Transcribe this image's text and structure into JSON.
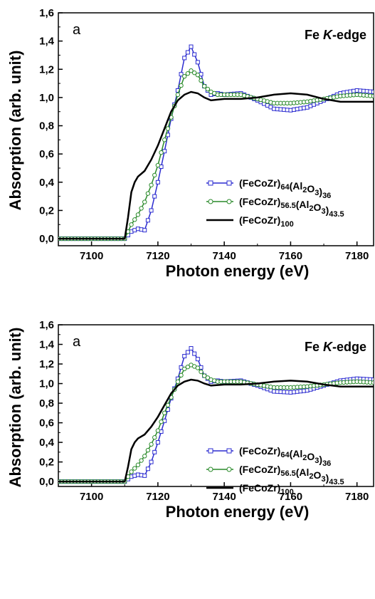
{
  "chart_data": [
    {
      "type": "line",
      "panel_label": "a",
      "annotation": "Fe K-edge",
      "annotation_parts": {
        "prefix": "Fe ",
        "italic": "K",
        "suffix": "-edge"
      },
      "xlabel": "Photon energy  (eV)",
      "ylabel": "Absorption  (arb. unit)",
      "xlim": [
        7090,
        7185
      ],
      "ylim": [
        -0.05,
        1.6
      ],
      "xticks": [
        7100,
        7120,
        7140,
        7160,
        7180
      ],
      "xtick_labels": [
        "7100",
        "7120",
        "7140",
        "7160",
        "7180"
      ],
      "yticks": [
        0.0,
        0.2,
        0.4,
        0.6,
        0.8,
        1.0,
        1.2,
        1.4,
        1.6
      ],
      "ytick_labels": [
        "0,0",
        "0,2",
        "0,4",
        "0,6",
        "0,8",
        "1,0",
        "1,2",
        "1,4",
        "1,6"
      ],
      "legend_position": "right",
      "series": [
        {
          "name": "(FeCoZr)64(Al2O3)36",
          "name_parts": [
            [
              "(FeCoZr)",
              ""
            ],
            [
              "64",
              "sub"
            ],
            [
              "(Al",
              ""
            ],
            [
              "2",
              "sub"
            ],
            [
              "O",
              ""
            ],
            [
              "3",
              "sub"
            ],
            [
              ")",
              ""
            ],
            [
              "36",
              "sub"
            ]
          ],
          "color": "#2b2bd0",
          "marker": "square",
          "x": [
            7090,
            7110,
            7112,
            7114,
            7116,
            7118,
            7120,
            7122,
            7124,
            7126,
            7128,
            7130,
            7132,
            7134,
            7136,
            7138,
            7140,
            7145,
            7150,
            7155,
            7160,
            7165,
            7170,
            7175,
            7180,
            7185
          ],
          "y": [
            0.0,
            0.0,
            0.05,
            0.07,
            0.06,
            0.2,
            0.4,
            0.62,
            0.85,
            1.05,
            1.28,
            1.36,
            1.25,
            1.08,
            1.02,
            1.03,
            1.02,
            1.03,
            0.98,
            0.92,
            0.91,
            0.93,
            0.98,
            1.03,
            1.05,
            1.04
          ]
        },
        {
          "name": "(FeCoZr)56.5(Al2O3)43.5",
          "name_parts": [
            [
              "(FeCoZr)",
              ""
            ],
            [
              "56.5",
              "sub"
            ],
            [
              "(Al",
              ""
            ],
            [
              "2",
              "sub"
            ],
            [
              "O",
              ""
            ],
            [
              "3",
              "sub"
            ],
            [
              ")",
              ""
            ],
            [
              "43.5",
              "sub"
            ]
          ],
          "color": "#2a8a2a",
          "marker": "circle",
          "x": [
            7090,
            7110,
            7112,
            7114,
            7116,
            7118,
            7120,
            7122,
            7124,
            7126,
            7128,
            7130,
            7132,
            7134,
            7136,
            7138,
            7140,
            7145,
            7150,
            7155,
            7160,
            7165,
            7170,
            7175,
            7180,
            7185
          ],
          "y": [
            0.0,
            0.0,
            0.1,
            0.17,
            0.26,
            0.38,
            0.52,
            0.7,
            0.86,
            1.02,
            1.15,
            1.19,
            1.16,
            1.08,
            1.04,
            1.02,
            1.02,
            1.02,
            0.99,
            0.96,
            0.96,
            0.97,
            0.99,
            1.01,
            1.02,
            1.01
          ]
        },
        {
          "name": "(FeCoZr)100",
          "name_parts": [
            [
              "(FeCoZr)",
              ""
            ],
            [
              "100",
              "sub"
            ]
          ],
          "color": "#000000",
          "marker": "none",
          "x": [
            7090,
            7110,
            7111,
            7112,
            7113,
            7114,
            7116,
            7118,
            7120,
            7122,
            7124,
            7126,
            7128,
            7130,
            7132,
            7134,
            7136,
            7140,
            7145,
            7150,
            7155,
            7160,
            7165,
            7170,
            7175,
            7180,
            7185
          ],
          "y": [
            0.0,
            0.0,
            0.15,
            0.33,
            0.4,
            0.44,
            0.48,
            0.56,
            0.66,
            0.78,
            0.9,
            0.98,
            1.02,
            1.04,
            1.03,
            1.0,
            0.98,
            0.99,
            0.99,
            1.0,
            1.02,
            1.03,
            1.02,
            0.99,
            0.97,
            0.97,
            0.97
          ]
        }
      ]
    },
    {
      "type": "line",
      "panel_label": "a",
      "annotation": "Fe K-edge",
      "annotation_parts": {
        "prefix": "Fe ",
        "italic": "K",
        "suffix": "-edge"
      },
      "xlabel": "Photon energy  (eV)",
      "ylabel": "Absorption  (arb. unit)",
      "xlim": [
        7090,
        7185
      ],
      "ylim": [
        -0.05,
        1.6
      ],
      "xticks": [
        7100,
        7120,
        7140,
        7160,
        7180
      ],
      "xtick_labels": [
        "7100",
        "7120",
        "7140",
        "7160",
        "7180"
      ],
      "yticks": [
        0.0,
        0.2,
        0.4,
        0.6,
        0.8,
        1.0,
        1.2,
        1.4,
        1.6
      ],
      "ytick_labels": [
        "0,0",
        "0,2",
        "0,4",
        "0,6",
        "0,8",
        "1,0",
        "1,2",
        "1,4",
        "1,6"
      ],
      "legend_position": "right",
      "series": [
        {
          "name": "(FeCoZr)64(Al2O3)36",
          "name_parts": [
            [
              "(FeCoZr)",
              ""
            ],
            [
              "64",
              "sub"
            ],
            [
              "(Al",
              ""
            ],
            [
              "2",
              "sub"
            ],
            [
              "O",
              ""
            ],
            [
              "3",
              "sub"
            ],
            [
              ")",
              ""
            ],
            [
              "36",
              "sub"
            ]
          ],
          "color": "#2b2bd0",
          "marker": "square",
          "x": [
            7090,
            7110,
            7112,
            7114,
            7116,
            7118,
            7120,
            7122,
            7124,
            7126,
            7128,
            7130,
            7132,
            7134,
            7136,
            7138,
            7140,
            7145,
            7150,
            7155,
            7160,
            7165,
            7170,
            7175,
            7180,
            7185
          ],
          "y": [
            0.0,
            0.0,
            0.05,
            0.07,
            0.06,
            0.2,
            0.4,
            0.62,
            0.85,
            1.05,
            1.28,
            1.36,
            1.25,
            1.08,
            1.02,
            1.03,
            1.02,
            1.03,
            0.98,
            0.92,
            0.91,
            0.93,
            0.98,
            1.03,
            1.05,
            1.04
          ]
        },
        {
          "name": "(FeCoZr)56.5(Al2O3)43.5",
          "name_parts": [
            [
              "(FeCoZr)",
              ""
            ],
            [
              "56.5",
              "sub"
            ],
            [
              "(Al",
              ""
            ],
            [
              "2",
              "sub"
            ],
            [
              "O",
              ""
            ],
            [
              "3",
              "sub"
            ],
            [
              ")",
              ""
            ],
            [
              "43.5",
              "sub"
            ]
          ],
          "color": "#2a8a2a",
          "marker": "circle",
          "x": [
            7090,
            7110,
            7112,
            7114,
            7116,
            7118,
            7120,
            7122,
            7124,
            7126,
            7128,
            7130,
            7132,
            7134,
            7136,
            7138,
            7140,
            7145,
            7150,
            7155,
            7160,
            7165,
            7170,
            7175,
            7180,
            7185
          ],
          "y": [
            0.0,
            0.0,
            0.1,
            0.17,
            0.26,
            0.38,
            0.52,
            0.7,
            0.86,
            1.02,
            1.15,
            1.19,
            1.16,
            1.08,
            1.04,
            1.02,
            1.02,
            1.02,
            0.99,
            0.96,
            0.96,
            0.97,
            0.99,
            1.01,
            1.02,
            1.01
          ]
        },
        {
          "name": "(FeCoZr)100",
          "name_parts": [
            [
              "(FeCoZr)",
              ""
            ],
            [
              "100",
              "sub"
            ]
          ],
          "color": "#000000",
          "marker": "none",
          "x": [
            7090,
            7110,
            7111,
            7112,
            7113,
            7114,
            7116,
            7118,
            7120,
            7122,
            7124,
            7126,
            7128,
            7130,
            7132,
            7134,
            7136,
            7140,
            7145,
            7150,
            7155,
            7160,
            7165,
            7170,
            7175,
            7180,
            7185
          ],
          "y": [
            0.0,
            0.0,
            0.15,
            0.33,
            0.4,
            0.44,
            0.48,
            0.56,
            0.66,
            0.78,
            0.9,
            0.98,
            1.02,
            1.04,
            1.03,
            1.0,
            0.98,
            0.99,
            0.99,
            1.0,
            1.02,
            1.03,
            1.02,
            0.99,
            0.97,
            0.97,
            0.97
          ]
        }
      ]
    }
  ]
}
